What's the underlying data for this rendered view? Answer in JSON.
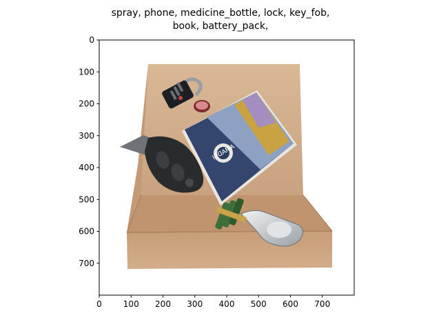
{
  "figure": {
    "title_line1": "spray, phone, medicine_bottle, lock, key_fob,",
    "title_line2": "book, battery_pack,"
  },
  "axes": {
    "x_ticks": [
      "0",
      "100",
      "200",
      "300",
      "400",
      "500",
      "600",
      "700"
    ],
    "y_ticks": [
      "0",
      "100",
      "200",
      "300",
      "400",
      "500",
      "600",
      "700"
    ],
    "x_tick_values": [
      0,
      100,
      200,
      300,
      400,
      500,
      600,
      700
    ],
    "y_tick_values": [
      0,
      100,
      200,
      300,
      400,
      500,
      600,
      700
    ],
    "xlim": [
      0,
      800
    ],
    "ylim": [
      800,
      0
    ]
  },
  "image_content": {
    "objects": [
      "cardboard box",
      "combination lock",
      "medicine bottle cap",
      "book",
      "key fob",
      "battery pack",
      "spray"
    ],
    "book_cover_text": "AMADEI",
    "colors": {
      "box": "#d6b08e",
      "box_dark": "#b98f6c",
      "book_blue": "#34466e",
      "book_gold": "#c9a341",
      "fob": "#2e2e2e",
      "battery_green": "#3e6e3a",
      "spray": "#cfd3d6",
      "lock_red": "#c0464a"
    }
  }
}
